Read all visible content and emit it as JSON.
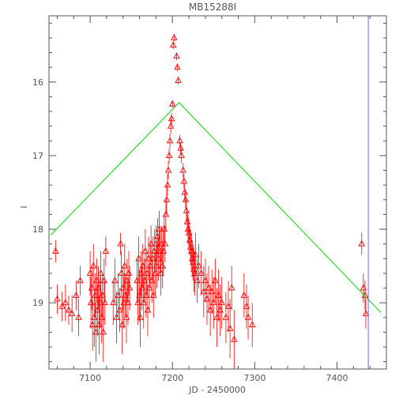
{
  "chart_data": {
    "type": "scatter",
    "title": "MB15288I",
    "xlabel": "JD - 2450000",
    "ylabel": "I",
    "xlim": [
      7050,
      7460
    ],
    "ylim": [
      19.9,
      15.1
    ],
    "y_inverted": true,
    "x_ticks": [
      7100,
      7200,
      7300,
      7400
    ],
    "y_ticks": [
      16,
      17,
      18,
      19
    ],
    "marker": "triangle-open",
    "colors": {
      "points": "#ff0000",
      "model_line": "#00dd00",
      "vertical_line": "#6666ff",
      "axes": "#555555"
    },
    "model_line": {
      "x": [
        7052,
        7208,
        7453
      ],
      "y": [
        18.08,
        16.28,
        19.13
      ]
    },
    "vertical_line_x": 7438,
    "series": [
      {
        "points": [
          [
            7058,
            18.3,
            0.15
          ],
          [
            7060,
            18.95,
            0.2
          ],
          [
            7066,
            19.05,
            0.2
          ],
          [
            7070,
            19.0,
            0.25
          ],
          [
            7074,
            19.1,
            0.2
          ],
          [
            7078,
            19.15,
            0.25
          ],
          [
            7083,
            18.9,
            0.2
          ],
          [
            7086,
            19.2,
            0.25
          ],
          [
            7088,
            18.7,
            0.2
          ],
          [
            7100,
            18.6,
            0.3
          ],
          [
            7101,
            19.0,
            0.35
          ],
          [
            7102,
            18.8,
            0.3
          ],
          [
            7103,
            19.3,
            0.35
          ],
          [
            7104,
            18.5,
            0.3
          ],
          [
            7105,
            19.2,
            0.4
          ],
          [
            7106,
            18.9,
            0.3
          ],
          [
            7107,
            19.4,
            0.4
          ],
          [
            7108,
            18.7,
            0.3
          ],
          [
            7109,
            19.1,
            0.35
          ],
          [
            7110,
            18.8,
            0.3
          ],
          [
            7111,
            19.3,
            0.4
          ],
          [
            7112,
            19.0,
            0.35
          ],
          [
            7113,
            18.6,
            0.3
          ],
          [
            7114,
            19.2,
            0.35
          ],
          [
            7115,
            18.9,
            0.3
          ],
          [
            7116,
            19.4,
            0.4
          ],
          [
            7117,
            18.7,
            0.3
          ],
          [
            7118,
            19.0,
            0.3
          ],
          [
            7119,
            18.3,
            0.2
          ],
          [
            7128,
            19.0,
            0.3
          ],
          [
            7130,
            18.7,
            0.3
          ],
          [
            7132,
            19.2,
            0.35
          ],
          [
            7134,
            18.9,
            0.3
          ],
          [
            7136,
            19.1,
            0.3
          ],
          [
            7137,
            18.2,
            0.15
          ],
          [
            7138,
            18.6,
            0.3
          ],
          [
            7139,
            19.3,
            0.4
          ],
          [
            7140,
            18.8,
            0.3
          ],
          [
            7141,
            19.0,
            0.35
          ],
          [
            7142,
            18.5,
            0.3
          ],
          [
            7143,
            18.9,
            0.3
          ],
          [
            7144,
            19.2,
            0.35
          ],
          [
            7145,
            18.7,
            0.3
          ],
          [
            7146,
            19.0,
            0.3
          ],
          [
            7147,
            18.6,
            0.3
          ],
          [
            7148,
            18.8,
            0.3
          ],
          [
            7157,
            18.7,
            0.3
          ],
          [
            7158,
            19.0,
            0.3
          ],
          [
            7159,
            18.4,
            0.3
          ],
          [
            7160,
            18.9,
            0.35
          ],
          [
            7161,
            19.2,
            0.4
          ],
          [
            7162,
            18.6,
            0.3
          ],
          [
            7163,
            18.8,
            0.3
          ],
          [
            7164,
            18.5,
            0.3
          ],
          [
            7165,
            19.0,
            0.35
          ],
          [
            7166,
            18.7,
            0.3
          ],
          [
            7167,
            18.3,
            0.3
          ],
          [
            7168,
            18.9,
            0.3
          ],
          [
            7169,
            18.6,
            0.3
          ],
          [
            7170,
            19.1,
            0.35
          ],
          [
            7171,
            18.4,
            0.3
          ],
          [
            7172,
            18.8,
            0.3
          ],
          [
            7173,
            18.5,
            0.3
          ],
          [
            7174,
            18.2,
            0.25
          ],
          [
            7175,
            18.7,
            0.3
          ],
          [
            7176,
            18.4,
            0.3
          ],
          [
            7177,
            18.9,
            0.3
          ],
          [
            7178,
            18.3,
            0.3
          ],
          [
            7179,
            18.6,
            0.3
          ],
          [
            7180,
            18.2,
            0.25
          ],
          [
            7181,
            18.5,
            0.3
          ],
          [
            7182,
            18.1,
            0.25
          ],
          [
            7183,
            18.4,
            0.3
          ],
          [
            7184,
            18.0,
            0.25
          ],
          [
            7185,
            18.3,
            0.3
          ],
          [
            7186,
            18.6,
            0.3
          ],
          [
            7187,
            18.2,
            0.25
          ],
          [
            7188,
            18.5,
            0.3
          ],
          [
            7189,
            18.3,
            0.3
          ],
          [
            7190,
            18.0,
            0.2
          ],
          [
            7191,
            18.2,
            0.25
          ],
          [
            7192,
            17.8,
            0.2
          ],
          [
            7193,
            17.6,
            0.2
          ],
          [
            7194,
            17.4,
            0.15
          ],
          [
            7195,
            17.2,
            0.12
          ],
          [
            7196,
            17.0,
            0.1
          ],
          [
            7197,
            16.8,
            0.1
          ],
          [
            7198,
            16.6,
            0.1
          ],
          [
            7199,
            16.5,
            0.08
          ],
          [
            7200,
            16.3,
            0.05
          ],
          [
            7201,
            15.5,
            0.05
          ],
          [
            7202,
            15.4,
            0.05
          ],
          [
            7205,
            15.65,
            0.05
          ],
          [
            7206,
            15.8,
            0.05
          ],
          [
            7207,
            15.98,
            0.05
          ],
          [
            7209,
            16.8,
            0.08
          ],
          [
            7210,
            16.9,
            0.08
          ],
          [
            7211,
            17.0,
            0.1
          ],
          [
            7213,
            17.2,
            0.1
          ],
          [
            7214,
            17.35,
            0.1
          ],
          [
            7215,
            17.5,
            0.12
          ],
          [
            7216,
            17.6,
            0.12
          ],
          [
            7217,
            17.75,
            0.15
          ],
          [
            7218,
            17.9,
            0.15
          ],
          [
            7219,
            18.0,
            0.2
          ],
          [
            7220,
            18.05,
            0.2
          ],
          [
            7221,
            18.15,
            0.2
          ],
          [
            7222,
            18.25,
            0.2
          ],
          [
            7223,
            18.3,
            0.25
          ],
          [
            7224,
            18.4,
            0.25
          ],
          [
            7225,
            18.45,
            0.25
          ],
          [
            7226,
            18.55,
            0.3
          ],
          [
            7227,
            18.6,
            0.3
          ],
          [
            7228,
            18.35,
            0.3
          ],
          [
            7230,
            18.7,
            0.3
          ],
          [
            7232,
            18.5,
            0.3
          ],
          [
            7235,
            18.6,
            0.3
          ],
          [
            7238,
            18.85,
            0.35
          ],
          [
            7240,
            18.7,
            0.3
          ],
          [
            7242,
            18.95,
            0.35
          ],
          [
            7244,
            18.8,
            0.3
          ],
          [
            7246,
            19.1,
            0.35
          ],
          [
            7248,
            18.85,
            0.3
          ],
          [
            7250,
            19.0,
            0.35
          ],
          [
            7252,
            18.7,
            0.3
          ],
          [
            7254,
            19.2,
            0.4
          ],
          [
            7256,
            18.9,
            0.35
          ],
          [
            7258,
            19.1,
            0.35
          ],
          [
            7260,
            19.0,
            0.35
          ],
          [
            7265,
            19.2,
            0.35
          ],
          [
            7268,
            19.05,
            0.35
          ],
          [
            7270,
            19.35,
            0.4
          ],
          [
            7272,
            18.8,
            0.3
          ],
          [
            7275,
            19.5,
            0.4
          ],
          [
            7287,
            18.9,
            0.3
          ],
          [
            7290,
            19.05,
            0.3
          ],
          [
            7292,
            19.2,
            0.3
          ],
          [
            7297,
            19.3,
            0.3
          ],
          [
            7430,
            18.2,
            0.15
          ],
          [
            7432,
            18.8,
            0.2
          ],
          [
            7434,
            18.9,
            0.2
          ],
          [
            7435,
            19.15,
            0.2
          ]
        ]
      }
    ]
  }
}
